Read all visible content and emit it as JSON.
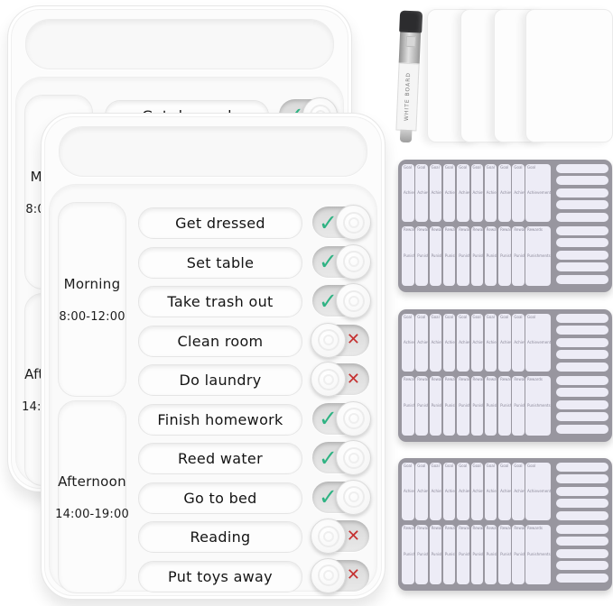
{
  "boards": {
    "count": 2,
    "time_blocks": [
      {
        "label": "Morning",
        "time": "8:00-12:00"
      },
      {
        "label": "Afternoon",
        "time": "14:00-19:00"
      }
    ],
    "tasks": [
      {
        "label": "Get dressed",
        "done": true
      },
      {
        "label": "Set table",
        "done": true
      },
      {
        "label": "Take trash out",
        "done": true
      },
      {
        "label": "Clean room",
        "done": false
      },
      {
        "label": "Do laundry",
        "done": false
      },
      {
        "label": "Finish homework",
        "done": true
      },
      {
        "label": "Reed water",
        "done": true
      },
      {
        "label": "Go to bed",
        "done": true
      },
      {
        "label": "Reading",
        "done": false
      },
      {
        "label": "Put toys away",
        "done": false
      }
    ]
  },
  "icons": {
    "check": "✓",
    "cross": "✕"
  },
  "marker": {
    "text": "WHITE BOARD"
  },
  "cards": {
    "count": 4
  },
  "sheets": {
    "count": 3,
    "narrow_columns": 9,
    "strips_per_section": 5,
    "labels": {
      "goal": "Goal",
      "achievements": "Achievements",
      "rewards": "Rewards",
      "punishments": "Punishments"
    }
  },
  "colors": {
    "check": "#2fb383",
    "cross": "#c53030",
    "sheet_bg": "#98969f",
    "sticker_fill": "#edecf6",
    "board_bg": "#fcfcfc"
  }
}
